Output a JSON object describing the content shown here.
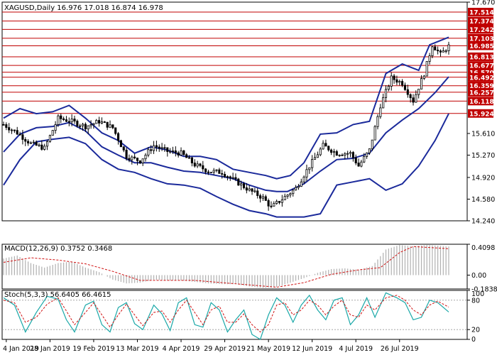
{
  "chart_data": [
    {
      "type": "candlestick",
      "title": "XAGUSD,Daily  16.976 17.018 16.874 16.978",
      "ylim": [
        14.24,
        17.67
      ],
      "yticks": [
        "17.670",
        "15.610",
        "15.270",
        "14.920",
        "14.580",
        "14.240"
      ],
      "levels": [
        "17.514",
        "17.374",
        "17.242",
        "17.103",
        "16.985",
        "16.813",
        "16.677",
        "16.570",
        "16.492",
        "16.359",
        "16.257",
        "16.118",
        "15.924"
      ],
      "xticks": [
        "4 Jan 2019",
        "28 Jan 2019",
        "19 Feb 2019",
        "13 Mar 2019",
        "4 Apr 2019",
        "29 Apr 2019",
        "21 May 2019",
        "12 Jun 2019",
        "4 Jul 2019",
        "26 Jul 2019"
      ],
      "close_path": [
        [
          0,
          15.75
        ],
        [
          5,
          15.62
        ],
        [
          10,
          15.45
        ],
        [
          15,
          15.38
        ],
        [
          20,
          15.85
        ],
        [
          25,
          15.8
        ],
        [
          30,
          15.72
        ],
        [
          35,
          15.8
        ],
        [
          40,
          15.7
        ],
        [
          45,
          15.25
        ],
        [
          50,
          15.18
        ],
        [
          55,
          15.42
        ],
        [
          60,
          15.33
        ],
        [
          65,
          15.3
        ],
        [
          70,
          15.12
        ],
        [
          75,
          15.02
        ],
        [
          80,
          15.0
        ],
        [
          85,
          14.86
        ],
        [
          90,
          14.72
        ],
        [
          95,
          14.6
        ],
        [
          98,
          14.45
        ],
        [
          102,
          14.58
        ],
        [
          107,
          14.75
        ],
        [
          112,
          15.1
        ],
        [
          117,
          15.42
        ],
        [
          122,
          15.3
        ],
        [
          127,
          15.3
        ],
        [
          130,
          15.1
        ],
        [
          134,
          15.35
        ],
        [
          138,
          16.05
        ],
        [
          142,
          16.48
        ],
        [
          146,
          16.4
        ],
        [
          150,
          16.12
        ],
        [
          154,
          16.55
        ],
        [
          157,
          17.0
        ],
        [
          160,
          16.85
        ],
        [
          163,
          16.98
        ]
      ],
      "bollinger": {
        "upper": [
          [
            0,
            15.85
          ],
          [
            6,
            16.0
          ],
          [
            12,
            15.92
          ],
          [
            18,
            15.95
          ],
          [
            24,
            16.05
          ],
          [
            30,
            15.85
          ],
          [
            36,
            15.62
          ],
          [
            42,
            15.5
          ],
          [
            48,
            15.3
          ],
          [
            54,
            15.4
          ],
          [
            60,
            15.35
          ],
          [
            66,
            15.25
          ],
          [
            72,
            15.25
          ],
          [
            78,
            15.2
          ],
          [
            84,
            15.05
          ],
          [
            90,
            15.0
          ],
          [
            96,
            14.95
          ],
          [
            100,
            14.9
          ],
          [
            105,
            14.95
          ],
          [
            110,
            15.15
          ],
          [
            116,
            15.6
          ],
          [
            122,
            15.62
          ],
          [
            128,
            15.75
          ],
          [
            134,
            15.8
          ],
          [
            140,
            16.55
          ],
          [
            146,
            16.7
          ],
          [
            152,
            16.6
          ],
          [
            156,
            17.0
          ],
          [
            163,
            17.12
          ]
        ],
        "middle": [
          [
            0,
            15.32
          ],
          [
            6,
            15.6
          ],
          [
            12,
            15.7
          ],
          [
            18,
            15.72
          ],
          [
            24,
            15.78
          ],
          [
            30,
            15.65
          ],
          [
            36,
            15.4
          ],
          [
            42,
            15.27
          ],
          [
            48,
            15.15
          ],
          [
            54,
            15.15
          ],
          [
            60,
            15.08
          ],
          [
            66,
            15.02
          ],
          [
            72,
            15.0
          ],
          [
            78,
            14.95
          ],
          [
            84,
            14.9
          ],
          [
            90,
            14.8
          ],
          [
            96,
            14.72
          ],
          [
            100,
            14.7
          ],
          [
            104,
            14.7
          ],
          [
            110,
            14.82
          ],
          [
            116,
            15.02
          ],
          [
            122,
            15.2
          ],
          [
            128,
            15.22
          ],
          [
            134,
            15.3
          ],
          [
            140,
            15.62
          ],
          [
            146,
            15.82
          ],
          [
            152,
            16.0
          ],
          [
            158,
            16.25
          ],
          [
            163,
            16.5
          ]
        ],
        "lower": [
          [
            0,
            14.8
          ],
          [
            6,
            15.2
          ],
          [
            12,
            15.48
          ],
          [
            18,
            15.52
          ],
          [
            24,
            15.55
          ],
          [
            30,
            15.45
          ],
          [
            36,
            15.2
          ],
          [
            42,
            15.05
          ],
          [
            48,
            15.0
          ],
          [
            54,
            14.9
          ],
          [
            60,
            14.82
          ],
          [
            66,
            14.8
          ],
          [
            72,
            14.75
          ],
          [
            78,
            14.62
          ],
          [
            84,
            14.5
          ],
          [
            90,
            14.4
          ],
          [
            96,
            14.35
          ],
          [
            100,
            14.3
          ],
          [
            104,
            14.3
          ],
          [
            110,
            14.3
          ],
          [
            116,
            14.35
          ],
          [
            122,
            14.8
          ],
          [
            128,
            14.85
          ],
          [
            134,
            14.9
          ],
          [
            140,
            14.72
          ],
          [
            146,
            14.82
          ],
          [
            152,
            15.1
          ],
          [
            158,
            15.5
          ],
          [
            163,
            15.92
          ]
        ]
      }
    },
    {
      "type": "bar",
      "title": "MACD(12,26,9) 0.3752 0.3468",
      "ylim": [
        -0.1838,
        0.4098
      ],
      "yticks": [
        "0.4098",
        "0.00",
        "-0.1838"
      ],
      "histogram": [
        [
          0,
          0.22
        ],
        [
          5,
          0.26
        ],
        [
          10,
          0.16
        ],
        [
          15,
          0.1
        ],
        [
          20,
          0.16
        ],
        [
          25,
          0.18
        ],
        [
          30,
          0.1
        ],
        [
          35,
          0.04
        ],
        [
          40,
          -0.06
        ],
        [
          45,
          -0.11
        ],
        [
          50,
          -0.1
        ],
        [
          55,
          -0.06
        ],
        [
          60,
          -0.07
        ],
        [
          65,
          -0.07
        ],
        [
          70,
          -0.09
        ],
        [
          75,
          -0.11
        ],
        [
          80,
          -0.12
        ],
        [
          85,
          -0.12
        ],
        [
          90,
          -0.15
        ],
        [
          95,
          -0.17
        ],
        [
          100,
          -0.16
        ],
        [
          105,
          -0.1
        ],
        [
          110,
          -0.04
        ],
        [
          115,
          0.03
        ],
        [
          120,
          0.08
        ],
        [
          125,
          0.09
        ],
        [
          130,
          0.07
        ],
        [
          135,
          0.12
        ],
        [
          140,
          0.34
        ],
        [
          145,
          0.4
        ],
        [
          150,
          0.38
        ],
        [
          155,
          0.4
        ],
        [
          163,
          0.38
        ]
      ],
      "signal": [
        [
          0,
          0.17
        ],
        [
          10,
          0.23
        ],
        [
          20,
          0.2
        ],
        [
          30,
          0.15
        ],
        [
          40,
          0.05
        ],
        [
          50,
          -0.07
        ],
        [
          60,
          -0.07
        ],
        [
          70,
          -0.07
        ],
        [
          80,
          -0.1
        ],
        [
          90,
          -0.13
        ],
        [
          100,
          -0.16
        ],
        [
          110,
          -0.1
        ],
        [
          120,
          0.01
        ],
        [
          130,
          0.07
        ],
        [
          138,
          0.1
        ],
        [
          145,
          0.3
        ],
        [
          150,
          0.38
        ],
        [
          163,
          0.35
        ]
      ]
    },
    {
      "type": "line",
      "title": "Stoch(5,3,3) 56.6405 66.4615",
      "ylim": [
        0,
        100
      ],
      "yticks": [
        "100",
        "80",
        "20",
        "0"
      ],
      "k": [
        [
          0,
          85
        ],
        [
          4,
          70
        ],
        [
          8,
          15
        ],
        [
          12,
          55
        ],
        [
          16,
          88
        ],
        [
          20,
          82
        ],
        [
          23,
          40
        ],
        [
          26,
          15
        ],
        [
          30,
          70
        ],
        [
          33,
          78
        ],
        [
          36,
          30
        ],
        [
          39,
          15
        ],
        [
          42,
          65
        ],
        [
          45,
          75
        ],
        [
          48,
          32
        ],
        [
          51,
          20
        ],
        [
          55,
          70
        ],
        [
          58,
          52
        ],
        [
          61,
          18
        ],
        [
          64,
          75
        ],
        [
          67,
          85
        ],
        [
          70,
          30
        ],
        [
          73,
          25
        ],
        [
          76,
          75
        ],
        [
          79,
          60
        ],
        [
          82,
          15
        ],
        [
          85,
          40
        ],
        [
          88,
          60
        ],
        [
          91,
          10
        ],
        [
          94,
          0
        ],
        [
          97,
          50
        ],
        [
          100,
          85
        ],
        [
          103,
          70
        ],
        [
          106,
          35
        ],
        [
          109,
          70
        ],
        [
          112,
          90
        ],
        [
          115,
          60
        ],
        [
          118,
          40
        ],
        [
          121,
          80
        ],
        [
          124,
          85
        ],
        [
          127,
          30
        ],
        [
          130,
          50
        ],
        [
          133,
          85
        ],
        [
          136,
          45
        ],
        [
          140,
          95
        ],
        [
          144,
          85
        ],
        [
          147,
          75
        ],
        [
          150,
          40
        ],
        [
          153,
          45
        ],
        [
          156,
          80
        ],
        [
          159,
          75
        ],
        [
          163,
          56
        ]
      ],
      "d": [
        [
          0,
          80
        ],
        [
          4,
          75
        ],
        [
          8,
          35
        ],
        [
          12,
          45
        ],
        [
          16,
          72
        ],
        [
          20,
          85
        ],
        [
          23,
          58
        ],
        [
          26,
          30
        ],
        [
          30,
          55
        ],
        [
          33,
          75
        ],
        [
          36,
          50
        ],
        [
          39,
          25
        ],
        [
          42,
          50
        ],
        [
          45,
          72
        ],
        [
          48,
          50
        ],
        [
          51,
          28
        ],
        [
          55,
          55
        ],
        [
          58,
          58
        ],
        [
          61,
          35
        ],
        [
          64,
          60
        ],
        [
          67,
          80
        ],
        [
          70,
          55
        ],
        [
          73,
          30
        ],
        [
          76,
          60
        ],
        [
          79,
          68
        ],
        [
          82,
          35
        ],
        [
          85,
          35
        ],
        [
          88,
          52
        ],
        [
          91,
          30
        ],
        [
          94,
          15
        ],
        [
          97,
          30
        ],
        [
          100,
          70
        ],
        [
          103,
          75
        ],
        [
          106,
          50
        ],
        [
          109,
          60
        ],
        [
          112,
          80
        ],
        [
          115,
          70
        ],
        [
          118,
          50
        ],
        [
          121,
          68
        ],
        [
          124,
          80
        ],
        [
          127,
          50
        ],
        [
          130,
          45
        ],
        [
          133,
          70
        ],
        [
          136,
          60
        ],
        [
          140,
          85
        ],
        [
          144,
          90
        ],
        [
          147,
          80
        ],
        [
          150,
          60
        ],
        [
          153,
          50
        ],
        [
          156,
          70
        ],
        [
          159,
          78
        ],
        [
          163,
          66
        ]
      ]
    }
  ]
}
